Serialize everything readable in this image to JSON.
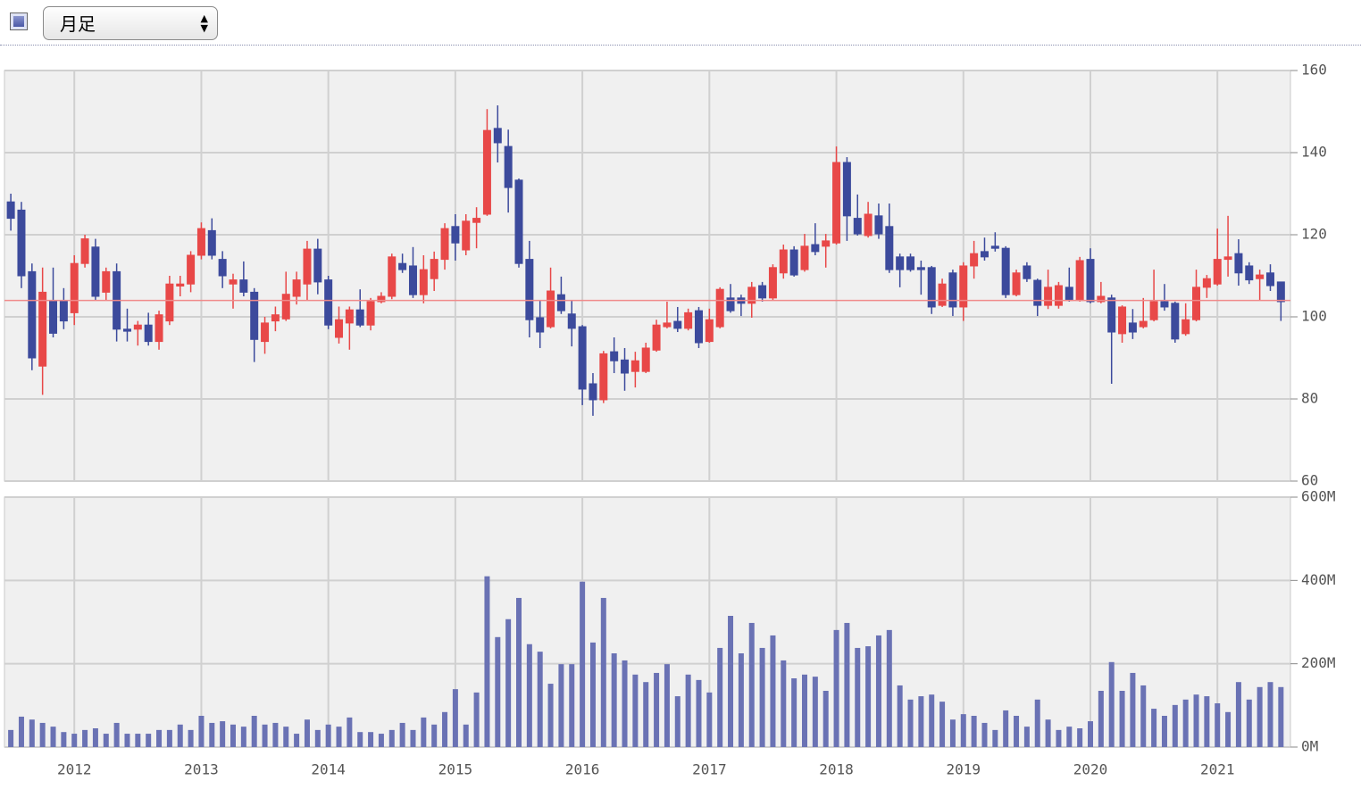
{
  "controls": {
    "select": "月足"
  },
  "chart_data": [
    {
      "type": "candlestick",
      "open": [
        128,
        126,
        111,
        88,
        104,
        104,
        101,
        113,
        117,
        106,
        111,
        97,
        97,
        98,
        94,
        99,
        107.5,
        108,
        115,
        121,
        114,
        108,
        109,
        106,
        94,
        99,
        99.5,
        105,
        108,
        116.5,
        109,
        95,
        98.5,
        101.7,
        98,
        103.7,
        105,
        113,
        112.4,
        105.4,
        109.3,
        114,
        122,
        116.3,
        123,
        125,
        145.9,
        141.5,
        133.3,
        114,
        99.8,
        97.6,
        105.4,
        100.7,
        97.6,
        83.7,
        79.8,
        91.5,
        89.5,
        86.7,
        86.7,
        91.9,
        97.6,
        98.9,
        97.2,
        101.5,
        94,
        97.6,
        104.6,
        104.6,
        103.3,
        107.6,
        104.6,
        110.7,
        116.3,
        111.5,
        117.6,
        117.2,
        118,
        137.6,
        124,
        119.8,
        124.6,
        122,
        114.6,
        114.6,
        112,
        112,
        102.8,
        110.7,
        102.4,
        112.4,
        115.9,
        117.2,
        116.7,
        105.4,
        112.4,
        108.9,
        102.8,
        102.8,
        107.2,
        104,
        114,
        103.7,
        104.6,
        95.9,
        98.5,
        97.6,
        99.3,
        103.7,
        103.3,
        95.9,
        99.3,
        107.2,
        108,
        114,
        115.4,
        112.4,
        109.3,
        110.7,
        108.5
      ],
      "high": [
        130,
        128,
        113,
        112,
        112,
        107,
        115,
        120,
        119,
        112,
        113,
        102,
        99,
        101,
        101.5,
        110,
        110,
        116,
        123,
        124,
        116,
        110.5,
        113.5,
        107,
        100,
        102.5,
        111,
        111,
        118.5,
        119,
        110,
        102.5,
        102.5,
        106.7,
        104.6,
        106,
        115.4,
        115.4,
        117,
        115,
        115.9,
        122.8,
        125,
        125,
        126.7,
        150.6,
        151.5,
        145.6,
        133.7,
        118.5,
        104,
        112,
        109.8,
        104,
        98,
        86.3,
        91.7,
        95,
        92.4,
        91.5,
        93.7,
        99.3,
        103.7,
        102.4,
        102,
        102.4,
        102,
        107.2,
        108,
        105.4,
        108.5,
        108.5,
        112.8,
        117.6,
        117.2,
        120.2,
        122.8,
        120.2,
        141.5,
        138.9,
        129.8,
        128,
        127.6,
        127.6,
        115.4,
        115.4,
        113.7,
        112.4,
        109.3,
        111.5,
        113.3,
        118.5,
        119.3,
        120.6,
        117.2,
        111.5,
        113.3,
        109.3,
        111.5,
        108.5,
        112,
        114.6,
        116.7,
        108.5,
        105.4,
        102.8,
        101.9,
        104.6,
        111.5,
        108,
        103.7,
        103.3,
        111.5,
        110.2,
        121.5,
        124.6,
        118.9,
        113.3,
        111.5,
        112.8,
        108.5
      ],
      "low": [
        121,
        107,
        87,
        81,
        95,
        97,
        98,
        112,
        104,
        104,
        94,
        94,
        93,
        93,
        92,
        98,
        105,
        106,
        114,
        114,
        107,
        102,
        105,
        89,
        91,
        96.5,
        99,
        103,
        104,
        105.5,
        97,
        93.5,
        92,
        97.5,
        96.7,
        103.3,
        104.3,
        110.7,
        104.6,
        103.3,
        106.3,
        111.5,
        113.7,
        115,
        116.7,
        124.6,
        137.6,
        125.4,
        112,
        95,
        92.4,
        97.2,
        100.7,
        92.8,
        78.5,
        75.9,
        79,
        86.3,
        82,
        82.8,
        86.3,
        91.5,
        97.2,
        96.3,
        96.7,
        92.4,
        93.7,
        97.2,
        101,
        100.2,
        99.8,
        103.7,
        104,
        109.3,
        109.8,
        111,
        115,
        112,
        117.6,
        118.5,
        119.8,
        119.3,
        119,
        110.7,
        107.2,
        111,
        105.4,
        100.7,
        102.4,
        100.2,
        99,
        109.3,
        113.7,
        115.9,
        104.6,
        105,
        108.5,
        100.2,
        101.9,
        102,
        103.7,
        103.7,
        103.3,
        103.3,
        83.7,
        93.7,
        94.6,
        97.2,
        98.9,
        101.5,
        93.7,
        95.4,
        98.9,
        104.6,
        107.6,
        109.8,
        107.6,
        108,
        104,
        106.3,
        99
      ],
      "close": [
        124,
        110,
        90,
        106,
        96,
        99,
        113,
        119,
        105,
        111,
        97,
        96.5,
        98,
        94,
        100.5,
        108,
        108,
        115,
        121.5,
        115,
        110,
        109,
        106,
        94.5,
        98.5,
        100.5,
        105.5,
        109,
        116.5,
        108.5,
        98,
        99.3,
        101.7,
        98,
        103.7,
        105,
        114.6,
        111.5,
        105.4,
        111.5,
        114,
        121.5,
        118,
        123.3,
        124,
        145.4,
        142.4,
        131.5,
        113,
        99.3,
        96.3,
        106.3,
        101.5,
        97.2,
        82.4,
        79.8,
        91,
        89.3,
        86.3,
        89.3,
        92.4,
        98,
        98.5,
        97.2,
        101,
        93.7,
        99.3,
        106.7,
        101.5,
        103.3,
        107.2,
        104.6,
        112,
        116.3,
        110.2,
        117.2,
        115.9,
        118.5,
        137.6,
        124.6,
        120.2,
        125,
        120.2,
        111.5,
        111.5,
        111.5,
        111.5,
        102.4,
        108,
        102.4,
        112.4,
        115.4,
        114.6,
        116.7,
        105.4,
        110.7,
        109.3,
        102.8,
        107.2,
        107.6,
        104,
        113.7,
        103.7,
        105,
        96.3,
        102.4,
        96.3,
        98.9,
        103.7,
        102.4,
        94.6,
        99.3,
        107.2,
        109.3,
        114,
        114.6,
        110.7,
        109,
        110.2,
        107.6,
        103.7
      ],
      "up_color": "#e84848",
      "down_color": "#3c4a9c",
      "reference_line": 104,
      "reference_color": "#f08a8a",
      "xlim": [
        -0.6,
        120.9
      ],
      "ylim": [
        60,
        160
      ],
      "yticks": [
        60,
        80,
        100,
        120,
        140,
        160
      ],
      "grid": true
    },
    {
      "type": "bar",
      "values": [
        41,
        73,
        66,
        58,
        49,
        36,
        32,
        41,
        45,
        32,
        58,
        32,
        32,
        32,
        41,
        41,
        54,
        41,
        75,
        58,
        62,
        54,
        49,
        75,
        54,
        58,
        49,
        32,
        66,
        41,
        54,
        49,
        71,
        36,
        36,
        32,
        41,
        58,
        41,
        71,
        54,
        84,
        139,
        54,
        131,
        410,
        264,
        307,
        358,
        247,
        229,
        152,
        199,
        199,
        397,
        251,
        358,
        225,
        208,
        174,
        156,
        178,
        199,
        122,
        174,
        161,
        131,
        238,
        315,
        225,
        298,
        238,
        268,
        208,
        165,
        174,
        169,
        135,
        281,
        298,
        238,
        242,
        268,
        281,
        148,
        114,
        122,
        126,
        109,
        66,
        79,
        75,
        58,
        41,
        88,
        75,
        49,
        114,
        66,
        41,
        49,
        45,
        62,
        135,
        204,
        135,
        178,
        148,
        92,
        75,
        101,
        114,
        126,
        122,
        105,
        84,
        156,
        114,
        144,
        156,
        144
      ],
      "color": "#6a72b4",
      "xlim": [
        -0.6,
        120.9
      ],
      "ylim": [
        0,
        600
      ],
      "yticks": [
        {
          "value": 0,
          "label": "0M"
        },
        {
          "value": 200,
          "label": "200M"
        },
        {
          "value": 400,
          "label": "400M"
        },
        {
          "value": 600,
          "label": "600M"
        }
      ],
      "xticks": [
        {
          "value": 6,
          "label": "2012"
        },
        {
          "value": 18,
          "label": "2013"
        },
        {
          "value": 30,
          "label": "2014"
        },
        {
          "value": 42,
          "label": "2015"
        },
        {
          "value": 54,
          "label": "2016"
        },
        {
          "value": 66,
          "label": "2017"
        },
        {
          "value": 78,
          "label": "2018"
        },
        {
          "value": 90,
          "label": "2019"
        },
        {
          "value": 102,
          "label": "2020"
        },
        {
          "value": 114,
          "label": "2021"
        }
      ],
      "grid": true
    }
  ]
}
